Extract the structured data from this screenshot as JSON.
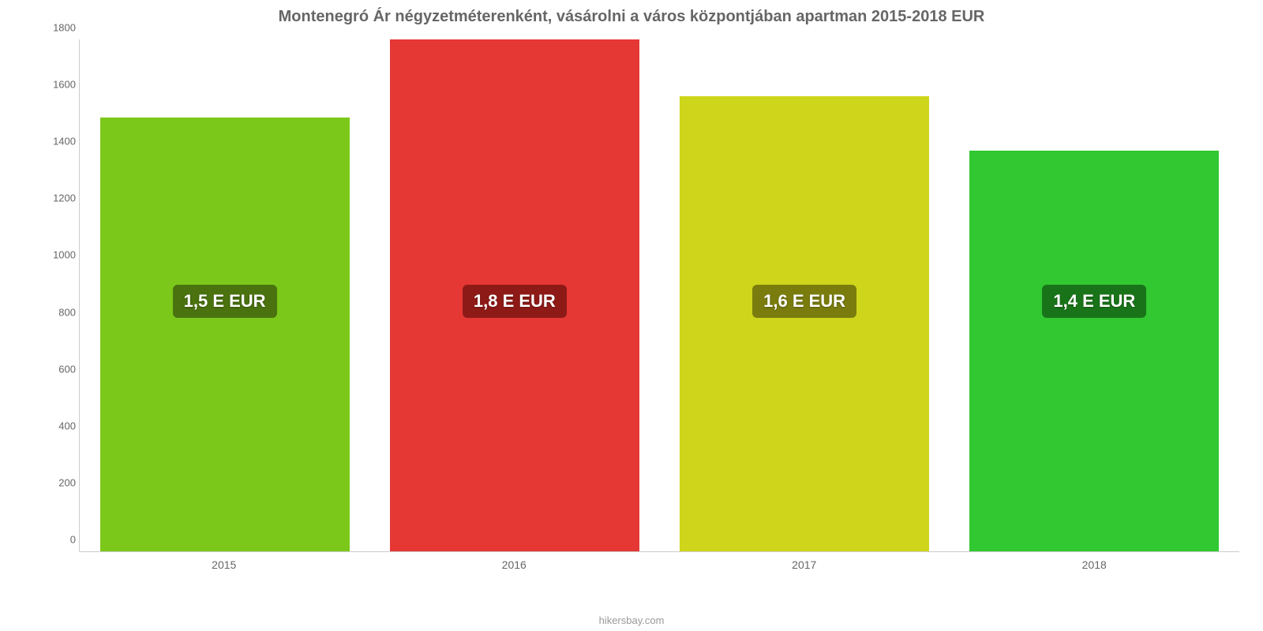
{
  "chart": {
    "type": "bar",
    "title": "Montenegró Ár négyzetméterenként, vásárolni a város központjában apartman 2015-2018 EUR",
    "title_fontsize": 20,
    "title_color": "#666666",
    "background_color": "#ffffff",
    "axis_color": "#cccccc",
    "tick_label_color": "#666666",
    "tick_fontsize": 13,
    "xaxis_fontsize": 14,
    "ylim": [
      0,
      1800
    ],
    "ytick_step": 200,
    "yticks": [
      0,
      200,
      400,
      600,
      800,
      1000,
      1200,
      1400,
      1600,
      1800
    ],
    "bar_width_pct": 86,
    "categories": [
      "2015",
      "2016",
      "2017",
      "2018"
    ],
    "values": [
      1525,
      1800,
      1600,
      1410
    ],
    "bar_colors": [
      "#7bc81b",
      "#e53734",
      "#cfd51b",
      "#31c831"
    ],
    "value_labels": [
      "1,5 E EUR",
      "1,8 E EUR",
      "1,6 E EUR",
      "1,4 E EUR"
    ],
    "badge_bg_colors": [
      "#4a720f",
      "#8e1a17",
      "#7a7d0e",
      "#197419"
    ],
    "badge_text_color": "#ffffff",
    "badge_fontsize": 22,
    "badge_y_value": 880,
    "source_label": "hikersbay.com",
    "source_color": "#999999",
    "source_fontsize": 13
  }
}
